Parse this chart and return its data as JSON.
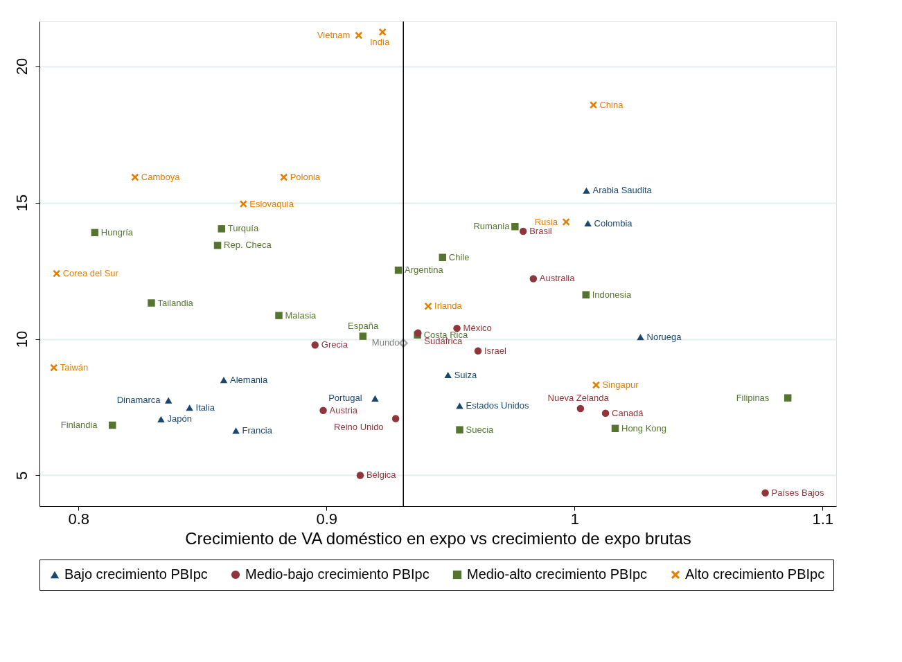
{
  "chart_data": {
    "type": "scatter",
    "xlabel": "Crecimiento de VA doméstico en expo vs crecimiento de expo brutas",
    "xlim": [
      0.7843,
      1.1055
    ],
    "ylim": [
      3.87,
      21.64
    ],
    "xticks": [
      0.8,
      0.9,
      1,
      1.1
    ],
    "yticks": [
      5,
      10,
      15,
      20
    ],
    "grid": "y",
    "legend": "bottom",
    "ref_lines": [
      {
        "axis": "x",
        "value": 0.931,
        "color": "#000000"
      }
    ],
    "series": [
      {
        "name": "Bajo crecimiento PBIpc",
        "color": "#1a476f",
        "marker": "triangle",
        "x": [
          1.0048,
          1.0054,
          1.0266,
          0.949,
          0.9537,
          0.9196,
          0.8586,
          0.8363,
          0.8448,
          0.8333,
          0.8635
        ],
        "values": [
          15.44,
          14.24,
          10.07,
          8.68,
          7.55,
          7.82,
          8.5,
          7.75,
          7.48,
          7.06,
          6.64
        ]
      },
      {
        "name": "Medio-bajo crecimiento PBIpc",
        "color": "#90353b",
        "marker": "circle",
        "x": [
          0.9793,
          0.9834,
          0.9526,
          0.9369,
          0.9611,
          0.8954,
          0.8987,
          0.9279,
          0.9136,
          1.0024,
          1.0125,
          1.0769
        ],
        "values": [
          13.95,
          12.21,
          10.39,
          10.22,
          9.56,
          9.78,
          7.38,
          7.08,
          5.0,
          7.45,
          7.28,
          4.36
        ]
      },
      {
        "name": "Medio-alto crecimiento PBIpc",
        "color": "#55752f",
        "marker": "square",
        "x": [
          0.8066,
          0.8577,
          0.8561,
          0.8294,
          0.8808,
          0.9147,
          0.929,
          0.9468,
          0.9367,
          0.976,
          1.0046,
          0.9537,
          1.0164,
          1.086,
          0.8137
        ],
        "values": [
          13.9,
          14.04,
          13.43,
          11.32,
          10.86,
          10.1,
          12.52,
          12.99,
          10.15,
          14.12,
          11.62,
          6.67,
          6.72,
          7.84,
          6.84
        ]
      },
      {
        "name": "Alto crecimiento PBIpc",
        "color": "#e37e00",
        "marker": "cross",
        "x": [
          0.913,
          0.9226,
          1.0076,
          0.8228,
          0.8828,
          0.8665,
          0.9966,
          0.7912,
          0.941,
          0.7901,
          1.0087
        ],
        "values": [
          21.13,
          21.25,
          18.58,
          15.93,
          15.93,
          14.95,
          14.29,
          12.4,
          11.2,
          8.95,
          8.31
        ]
      },
      {
        "color": "#7f7f7f",
        "marker": "diamond",
        "x": [
          0.931
        ],
        "values": [
          9.85
        ]
      }
    ],
    "annotations": [
      {
        "text": "Arabia Saudita",
        "x": 1.0048,
        "y": 15.44
      },
      {
        "text": "Colombia",
        "x": 1.0054,
        "y": 14.24
      },
      {
        "text": "Noruega",
        "x": 1.0266,
        "y": 10.07
      },
      {
        "text": "Suiza",
        "x": 0.949,
        "y": 8.68
      },
      {
        "text": "Estados Unidos",
        "x": 0.9537,
        "y": 7.55
      },
      {
        "text": "Portugal",
        "x": 0.9196,
        "y": 7.82
      },
      {
        "text": "Alemania",
        "x": 0.8586,
        "y": 8.5
      },
      {
        "text": "Dinamarca",
        "x": 0.8363,
        "y": 7.75
      },
      {
        "text": "Italia",
        "x": 0.8448,
        "y": 7.48
      },
      {
        "text": "Japón",
        "x": 0.8333,
        "y": 7.06
      },
      {
        "text": "Francia",
        "x": 0.8635,
        "y": 6.64
      },
      {
        "text": "Brasil",
        "x": 0.9793,
        "y": 13.95
      },
      {
        "text": "Australia",
        "x": 0.9834,
        "y": 12.21
      },
      {
        "text": "México",
        "x": 0.9526,
        "y": 10.39
      },
      {
        "text": "Sudáfrica",
        "x": 0.9369,
        "y": 10.22
      },
      {
        "text": "Israel",
        "x": 0.9611,
        "y": 9.56
      },
      {
        "text": "Grecia",
        "x": 0.8954,
        "y": 9.78
      },
      {
        "text": "Austria",
        "x": 0.8987,
        "y": 7.38
      },
      {
        "text": "Reino Unido",
        "x": 0.9279,
        "y": 7.08
      },
      {
        "text": "Bélgica",
        "x": 0.9136,
        "y": 5.0
      },
      {
        "text": "Nueva Zelanda",
        "x": 1.0024,
        "y": 7.45
      },
      {
        "text": "Canadá",
        "x": 1.0125,
        "y": 7.28
      },
      {
        "text": "Países Bajos",
        "x": 1.0769,
        "y": 4.36
      },
      {
        "text": "Hungría",
        "x": 0.8066,
        "y": 13.9
      },
      {
        "text": "Turquía",
        "x": 0.8577,
        "y": 14.04
      },
      {
        "text": "Rep. Checa",
        "x": 0.8561,
        "y": 13.43
      },
      {
        "text": "Tailandia",
        "x": 0.8294,
        "y": 11.32
      },
      {
        "text": "Malasia",
        "x": 0.8808,
        "y": 10.86
      },
      {
        "text": "España",
        "x": 0.9147,
        "y": 10.1
      },
      {
        "text": "Argentina",
        "x": 0.929,
        "y": 12.52
      },
      {
        "text": "Chile",
        "x": 0.9468,
        "y": 12.99
      },
      {
        "text": "Costa Rica",
        "x": 0.9367,
        "y": 10.15
      },
      {
        "text": "Rumania",
        "x": 0.976,
        "y": 14.12
      },
      {
        "text": "Indonesia",
        "x": 1.0046,
        "y": 11.62
      },
      {
        "text": "Suecia",
        "x": 0.9537,
        "y": 6.67
      },
      {
        "text": "Hong Kong",
        "x": 1.0164,
        "y": 6.72
      },
      {
        "text": "Filipinas",
        "x": 1.086,
        "y": 7.84
      },
      {
        "text": "Finlandia",
        "x": 0.8137,
        "y": 6.84
      },
      {
        "text": "Vietnam",
        "x": 0.913,
        "y": 21.13
      },
      {
        "text": "India",
        "x": 0.9226,
        "y": 21.25
      },
      {
        "text": "China",
        "x": 1.0076,
        "y": 18.58
      },
      {
        "text": "Camboya",
        "x": 0.8228,
        "y": 15.93
      },
      {
        "text": "Polonia",
        "x": 0.8828,
        "y": 15.93
      },
      {
        "text": "Eslovaquia",
        "x": 0.8665,
        "y": 14.95
      },
      {
        "text": "Rusia",
        "x": 0.9966,
        "y": 14.29
      },
      {
        "text": "Corea del Sur",
        "x": 0.7912,
        "y": 12.4
      },
      {
        "text": "Irlanda",
        "x": 0.941,
        "y": 11.2
      },
      {
        "text": "Taiwán",
        "x": 0.7901,
        "y": 8.95
      },
      {
        "text": "Singapur",
        "x": 1.0087,
        "y": 8.31
      },
      {
        "text": "Mundo",
        "x": 0.931,
        "y": 9.85
      }
    ]
  }
}
